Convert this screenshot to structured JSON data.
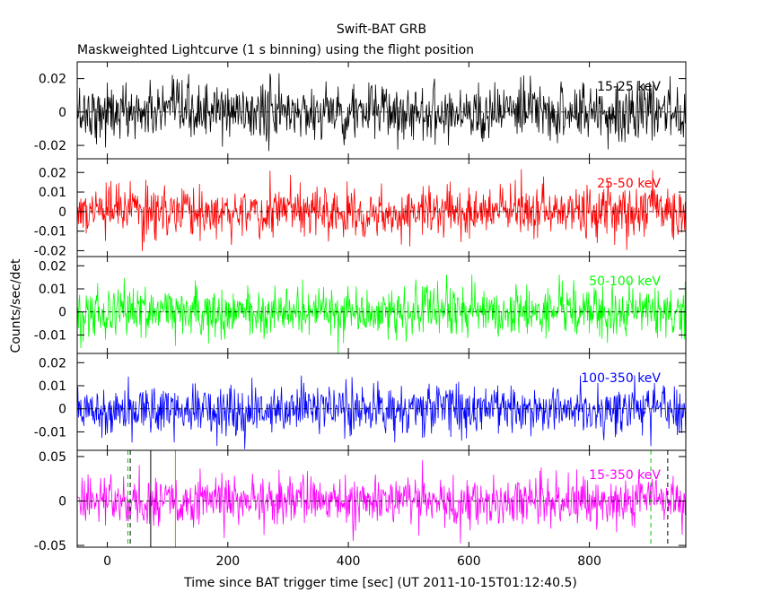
{
  "figure": {
    "title": "Swift-BAT GRB",
    "subtitle": "Maskweighted Lightcurve (1 s binning) using the flight position",
    "xlabel": "Time since BAT trigger time [sec] (UT 2011-10-15T01:12:40.5)",
    "ylabel": "Counts/sec/det"
  },
  "chart_data": [
    {
      "type": "line",
      "label": "15-25 keV",
      "color": "#000000",
      "xlim": [
        -50,
        960
      ],
      "ylim": [
        -0.028,
        0.03
      ],
      "yticks": [
        -0.02,
        0,
        0.02
      ],
      "ytick_labels": [
        "-0.02",
        "0",
        "0.02"
      ],
      "xticks": [
        0,
        200,
        400,
        600,
        800
      ],
      "xtick_labels": [
        "0",
        "200",
        "400",
        "600",
        "800"
      ],
      "noise_sigma": 0.0085,
      "markers": [],
      "excess": []
    },
    {
      "type": "line",
      "label": "25-50 keV",
      "color": "#ff0000",
      "xlim": [
        -50,
        960
      ],
      "ylim": [
        -0.023,
        0.027
      ],
      "yticks": [
        -0.02,
        -0.01,
        0,
        0.01,
        0.02
      ],
      "ytick_labels": [
        "-0.02",
        "-0.01",
        "0",
        "0.01",
        "0.02"
      ],
      "xticks": [
        0,
        200,
        400,
        600,
        800
      ],
      "xtick_labels": [
        "0",
        "200",
        "400",
        "600",
        "800"
      ],
      "noise_sigma": 0.0065,
      "markers": [],
      "excess": [
        {
          "x0": 880,
          "x1": 930,
          "amp": 0.004
        }
      ]
    },
    {
      "type": "line",
      "label": "50-100 keV",
      "color": "#00ff00",
      "xlim": [
        -50,
        960
      ],
      "ylim": [
        -0.018,
        0.024
      ],
      "yticks": [
        -0.01,
        0,
        0.01,
        0.02
      ],
      "ytick_labels": [
        "-0.01",
        "0",
        "0.01",
        "0.02"
      ],
      "xticks": [
        0,
        200,
        400,
        600,
        800
      ],
      "xtick_labels": [
        "0",
        "200",
        "400",
        "600",
        "800"
      ],
      "noise_sigma": 0.0055,
      "markers": [],
      "excess": []
    },
    {
      "type": "line",
      "label": "100-350 keV",
      "color": "#0000ff",
      "xlim": [
        -50,
        960
      ],
      "ylim": [
        -0.018,
        0.024
      ],
      "yticks": [
        -0.01,
        0,
        0.01,
        0.02
      ],
      "ytick_labels": [
        "-0.01",
        "0",
        "0.01",
        "0.02"
      ],
      "xticks": [
        0,
        200,
        400,
        600,
        800
      ],
      "xtick_labels": [
        "0",
        "200",
        "400",
        "600",
        "800"
      ],
      "noise_sigma": 0.0055,
      "markers": [],
      "excess": []
    },
    {
      "type": "line",
      "label": "15-350 keV",
      "color": "#ff00ff",
      "xlim": [
        -50,
        960
      ],
      "ylim": [
        -0.052,
        0.057
      ],
      "yticks": [
        -0.05,
        0,
        0.05
      ],
      "ytick_labels": [
        "-0.05",
        "0",
        "0.05"
      ],
      "xticks": [
        0,
        200,
        400,
        600,
        800
      ],
      "xtick_labels": [
        "0",
        "200",
        "400",
        "600",
        "800"
      ],
      "noise_sigma": 0.014,
      "markers": [
        {
          "x": 34,
          "color": "#00cc00",
          "dash": true
        },
        {
          "x": 38,
          "color": "#000000",
          "dash": true
        },
        {
          "x": 72,
          "color": "#000000",
          "dash": false
        },
        {
          "x": 113,
          "color": "#cc8800",
          "dash": false
        },
        {
          "x": 902,
          "color": "#00cc00",
          "dash": true
        },
        {
          "x": 930,
          "color": "#000000",
          "dash": true
        }
      ],
      "excess": [
        {
          "x0": 880,
          "x1": 930,
          "amp": 0.012
        }
      ]
    }
  ]
}
